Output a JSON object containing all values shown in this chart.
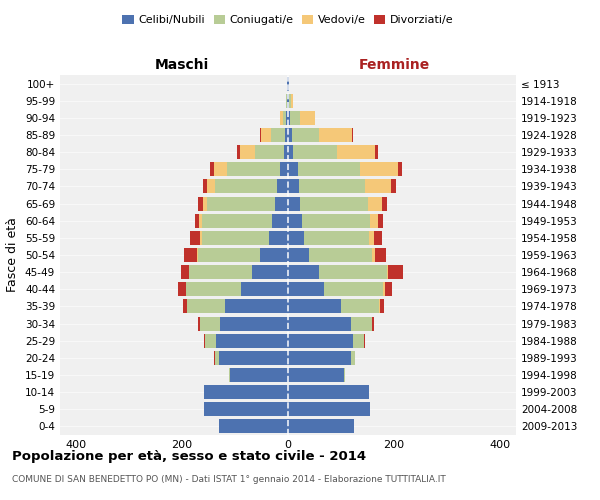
{
  "age_groups": [
    "0-4",
    "5-9",
    "10-14",
    "15-19",
    "20-24",
    "25-29",
    "30-34",
    "35-39",
    "40-44",
    "45-49",
    "50-54",
    "55-59",
    "60-64",
    "65-69",
    "70-74",
    "75-79",
    "80-84",
    "85-89",
    "90-94",
    "95-99",
    "100+"
  ],
  "birth_years": [
    "2009-2013",
    "2004-2008",
    "1999-2003",
    "1994-1998",
    "1989-1993",
    "1984-1988",
    "1979-1983",
    "1974-1978",
    "1969-1973",
    "1964-1968",
    "1959-1963",
    "1954-1958",
    "1949-1953",
    "1944-1948",
    "1939-1943",
    "1934-1938",
    "1929-1933",
    "1924-1928",
    "1919-1923",
    "1914-1918",
    "≤ 1913"
  ],
  "males": {
    "celibe": [
      130,
      158,
      158,
      110,
      130,
      135,
      128,
      118,
      88,
      68,
      52,
      35,
      30,
      25,
      20,
      15,
      8,
      5,
      3,
      1,
      1
    ],
    "coniugato": [
      0,
      0,
      0,
      2,
      8,
      22,
      38,
      72,
      105,
      118,
      118,
      128,
      132,
      128,
      118,
      100,
      55,
      28,
      7,
      2,
      0
    ],
    "vedovo": [
      0,
      0,
      0,
      0,
      0,
      0,
      0,
      0,
      0,
      1,
      2,
      3,
      5,
      8,
      15,
      25,
      28,
      18,
      5,
      1,
      0
    ],
    "divorziato": [
      0,
      0,
      0,
      0,
      1,
      2,
      3,
      8,
      15,
      15,
      25,
      18,
      9,
      8,
      8,
      7,
      5,
      2,
      1,
      0,
      0
    ]
  },
  "females": {
    "nubile": [
      125,
      155,
      152,
      105,
      118,
      122,
      118,
      100,
      68,
      58,
      40,
      30,
      26,
      22,
      20,
      18,
      10,
      7,
      4,
      2,
      1
    ],
    "coniugata": [
      0,
      0,
      0,
      2,
      8,
      22,
      40,
      72,
      112,
      128,
      118,
      122,
      128,
      128,
      125,
      118,
      82,
      52,
      18,
      3,
      0
    ],
    "vedova": [
      0,
      0,
      0,
      0,
      0,
      0,
      0,
      1,
      2,
      3,
      7,
      10,
      15,
      28,
      50,
      72,
      72,
      62,
      28,
      5,
      0
    ],
    "divorziata": [
      0,
      0,
      0,
      0,
      1,
      2,
      5,
      8,
      15,
      28,
      20,
      15,
      10,
      8,
      8,
      7,
      5,
      2,
      1,
      0,
      0
    ]
  },
  "colors": {
    "celibe": "#4d72b0",
    "coniugato": "#b8cc96",
    "vedovo": "#f5c878",
    "divorziato": "#c0312b"
  },
  "xlim": 430,
  "xticks": [
    -400,
    -200,
    0,
    200,
    400
  ],
  "xtick_labels": [
    "400",
    "200",
    "0",
    "200",
    "400"
  ],
  "title": "Popolazione per età, sesso e stato civile - 2014",
  "subtitle": "COMUNE DI SAN BENEDETTO PO (MN) - Dati ISTAT 1° gennaio 2014 - Elaborazione TUTTITALIA.IT",
  "ylabel_left": "Fasce di età",
  "xlabel_left": "Maschi",
  "xlabel_right": "Femmine",
  "legend_labels": [
    "Celibi/Nubili",
    "Coniugati/e",
    "Vedovi/e",
    "Divorziati/e"
  ],
  "background_color": "#ffffff",
  "plot_bg_color": "#f0f0f0"
}
